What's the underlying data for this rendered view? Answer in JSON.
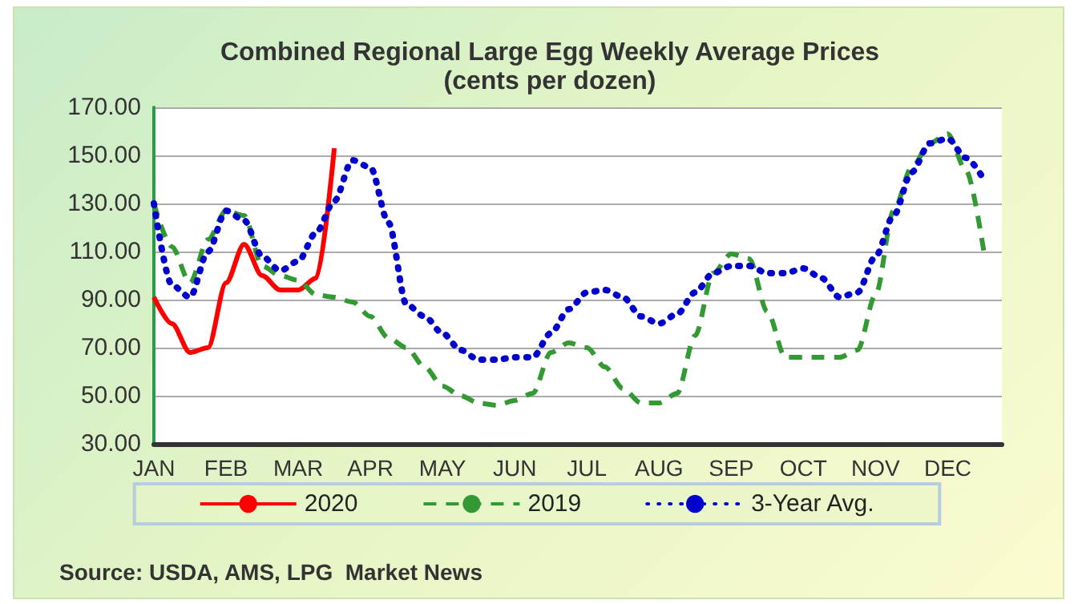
{
  "chart_data": {
    "type": "line",
    "title": "Combined Regional Large Egg Weekly Average Prices",
    "subtitle": "(cents per dozen)",
    "annotations": [
      "Source: USDA, AMS, LPG  Market News"
    ],
    "categories": [
      "JAN",
      null,
      null,
      null,
      "FEB",
      null,
      null,
      null,
      "MAR",
      null,
      null,
      null,
      "APR",
      null,
      null,
      null,
      "MAY",
      null,
      null,
      null,
      "JUN",
      null,
      null,
      null,
      "JUL",
      null,
      null,
      null,
      "AUG",
      null,
      null,
      null,
      "SEP",
      null,
      null,
      null,
      "OCT",
      null,
      null,
      null,
      "NOV",
      null,
      null,
      null,
      "DEC",
      null,
      null,
      null
    ],
    "ylim": [
      30,
      170
    ],
    "yticks": [
      {
        "value": 30,
        "label": "30.00"
      },
      {
        "value": 50,
        "label": "50.00"
      },
      {
        "value": 70,
        "label": "70.00"
      },
      {
        "value": 90,
        "label": "90.00"
      },
      {
        "value": 110,
        "label": "110.00"
      },
      {
        "value": 130,
        "label": "130.00"
      },
      {
        "value": 150,
        "label": "150.00"
      },
      {
        "value": 170,
        "label": "170.00"
      }
    ],
    "grid": "y",
    "legend": "bottom",
    "marker": "none",
    "series": [
      {
        "name": "2020",
        "color": "#ff0000",
        "line_style": "solid",
        "values": [
          91,
          80,
          68,
          70,
          97,
          113,
          100,
          94,
          94,
          99,
          153,
          null,
          null,
          null,
          null,
          null,
          null,
          null,
          null,
          null,
          null,
          null,
          null,
          null,
          null,
          null,
          null,
          null,
          null,
          null,
          null,
          null,
          null,
          null,
          null,
          null,
          null,
          null,
          null,
          null,
          null,
          null,
          null,
          null,
          null,
          null,
          null,
          null
        ]
      },
      {
        "name": "2019",
        "color": "#339933",
        "line_style": "dashed",
        "values": [
          130,
          112,
          97,
          115,
          127,
          125,
          104,
          100,
          98,
          92,
          91,
          89,
          83,
          74,
          70,
          62,
          54,
          50,
          47,
          46,
          48,
          51,
          68,
          72,
          70,
          62,
          53,
          47,
          47,
          51,
          75,
          101,
          109,
          107,
          85,
          66,
          66,
          66,
          66,
          69,
          92,
          127,
          145,
          155,
          159,
          144,
          110,
          null
        ]
      },
      {
        "name": "3-Year Avg.",
        "color": "#0000cc",
        "line_style": "dotted",
        "values": [
          130,
          96,
          91,
          110,
          127,
          123,
          108,
          102,
          106,
          118,
          131,
          148,
          145,
          122,
          88,
          83,
          76,
          69,
          65,
          65,
          66,
          66,
          76,
          86,
          93,
          94,
          91,
          83,
          80,
          84,
          93,
          101,
          104,
          104,
          101,
          101,
          103,
          99,
          91,
          93,
          108,
          125,
          143,
          155,
          157,
          149,
          140,
          null
        ]
      }
    ]
  }
}
